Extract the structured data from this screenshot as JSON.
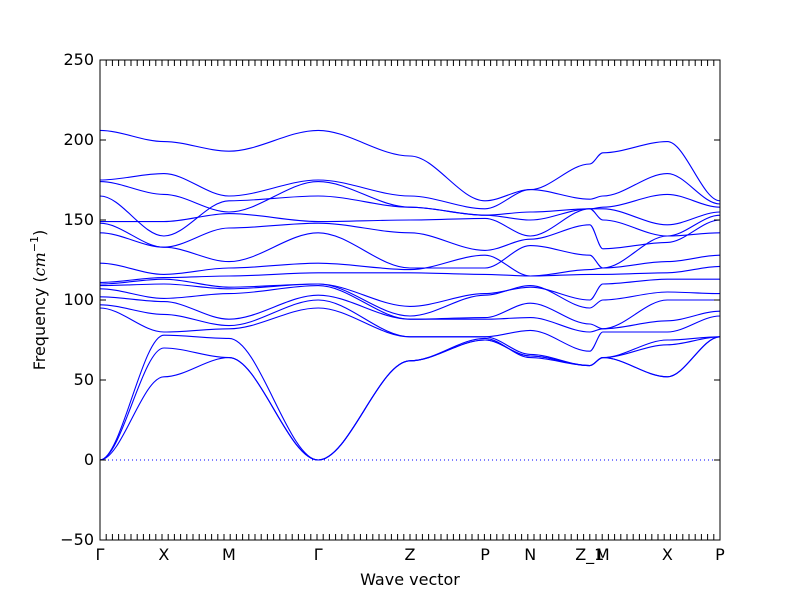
{
  "chart_data": {
    "type": "line",
    "title": "",
    "xlabel": "Wave vector",
    "ylabel_main": "Frequency (",
    "ylabel_unit": "cm",
    "ylabel_exp": "−1",
    "ylabel_close": ")",
    "ylim": [
      -50,
      250
    ],
    "yticks": [
      -50,
      0,
      50,
      100,
      150,
      200,
      250
    ],
    "xlim": [
      0,
      1
    ],
    "zero_line": true,
    "grid": false,
    "high_symmetry_points": [
      {
        "label": "Γ",
        "x": 0.0
      },
      {
        "label": "X",
        "x": 0.103
      },
      {
        "label": "M",
        "x": 0.208
      },
      {
        "label": "Γ",
        "x": 0.352
      },
      {
        "label": "Z",
        "x": 0.5
      },
      {
        "label": "P",
        "x": 0.621
      },
      {
        "label": "N",
        "x": 0.694
      },
      {
        "label": "Z_1",
        "x": 0.79
      },
      {
        "label": "M",
        "x": 0.811
      },
      {
        "label": "X",
        "x": 0.915
      },
      {
        "label": "P",
        "x": 1.0
      }
    ],
    "series": [
      {
        "values": [
          206,
          199,
          193,
          206,
          190,
          162,
          169,
          185,
          192,
          199,
          162
        ]
      },
      {
        "values": [
          175,
          179,
          165,
          175,
          165,
          157,
          169,
          163,
          165,
          179,
          160
        ]
      },
      {
        "values": [
          174,
          166,
          155,
          174,
          158,
          153,
          150,
          157,
          158,
          166,
          158
        ]
      },
      {
        "values": [
          165,
          140,
          162,
          165,
          158,
          153,
          155,
          157,
          157,
          147,
          155
        ]
      },
      {
        "values": [
          149,
          149,
          154,
          149,
          150,
          151,
          140,
          157,
          150,
          140,
          153
        ]
      },
      {
        "values": [
          148,
          133,
          145,
          148,
          142,
          131,
          138,
          147,
          132,
          136,
          150
        ]
      },
      {
        "values": [
          142,
          133,
          124,
          142,
          120,
          120,
          134,
          128,
          120,
          140,
          142
        ]
      },
      {
        "values": [
          123,
          116,
          120,
          123,
          119,
          128,
          115,
          119,
          120,
          124,
          128
        ]
      },
      {
        "values": [
          111,
          114,
          115,
          117,
          117,
          116,
          115,
          116,
          116,
          117,
          121
        ]
      },
      {
        "values": [
          110,
          113,
          108,
          110,
          96,
          104,
          108,
          100,
          110,
          113,
          113
        ]
      },
      {
        "values": [
          109,
          110,
          107,
          110,
          90,
          103,
          109,
          95,
          100,
          105,
          104
        ]
      },
      {
        "values": [
          107,
          101,
          104,
          109,
          88,
          89,
          98,
          85,
          82,
          100,
          100
        ]
      },
      {
        "values": [
          102,
          99,
          88,
          103,
          88,
          88,
          89,
          80,
          82,
          87,
          93
        ]
      },
      {
        "values": [
          97,
          91,
          84,
          100,
          77,
          77,
          81,
          68,
          80,
          80,
          90
        ]
      },
      {
        "values": [
          95,
          80,
          82,
          95,
          77,
          77,
          66,
          59,
          64,
          75,
          77
        ]
      },
      {
        "values": [
          0,
          78,
          76,
          0,
          62,
          76,
          64,
          59,
          64,
          72,
          77
        ]
      },
      {
        "values": [
          0,
          70,
          64,
          0,
          62,
          75,
          65,
          59,
          64,
          52,
          77
        ]
      },
      {
        "values": [
          0,
          52,
          64,
          0,
          62,
          75,
          65,
          59,
          64,
          52,
          77
        ]
      }
    ]
  }
}
